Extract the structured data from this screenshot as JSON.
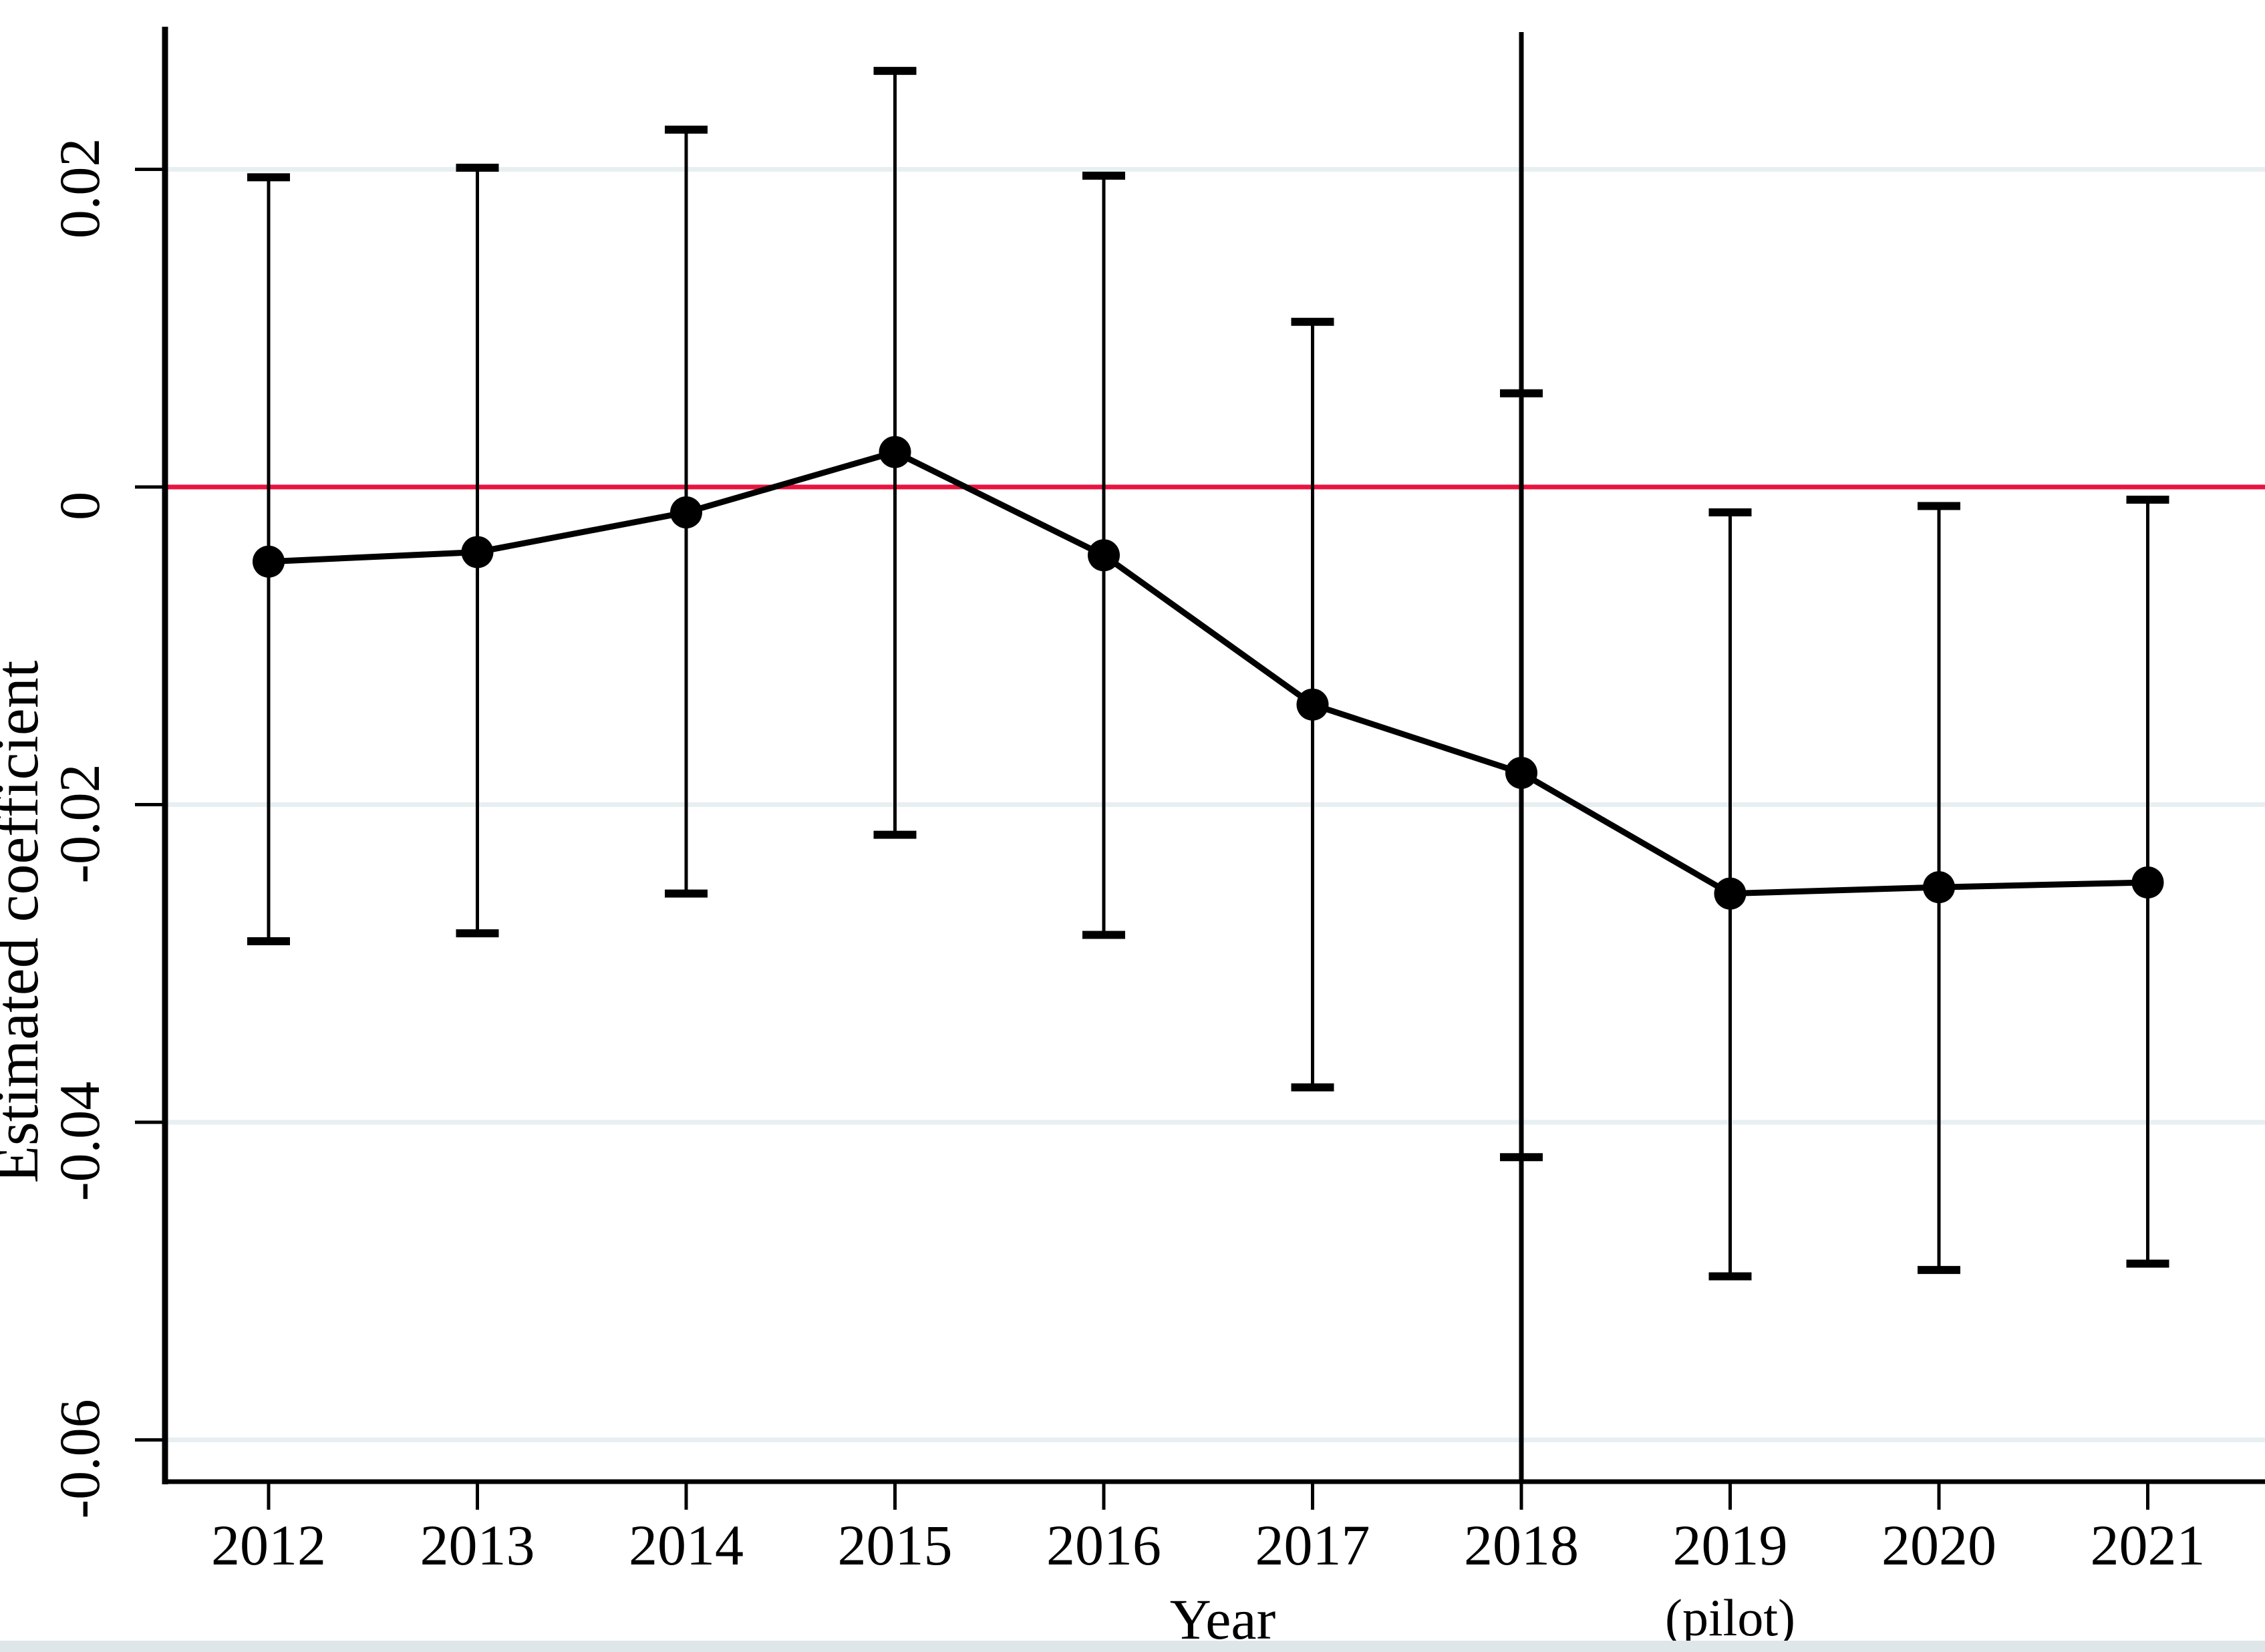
{
  "figure": {
    "background": "#ffffff",
    "bottom_strip_color": "#dfe6ea"
  },
  "chart_data": {
    "type": "line",
    "subtype": "coefficient-plot-with-confidence-intervals",
    "title": "",
    "xlabel": "Year",
    "ylabel": "Estimated coefficient",
    "categories": [
      "2012",
      "2013",
      "2014",
      "2015",
      "2016",
      "2017",
      "2018",
      "2019",
      "2020",
      "2021"
    ],
    "x_axis_note": {
      "text": "(pilot)",
      "under_category": "2019"
    },
    "series": [
      {
        "name": "Estimated coefficient",
        "values": [
          -0.0047,
          -0.0041,
          -0.0016,
          0.0022,
          -0.0043,
          -0.0137,
          -0.018,
          -0.0256,
          -0.0252,
          -0.0249
        ],
        "ci_high": [
          0.0195,
          0.0201,
          0.0225,
          0.0262,
          0.0196,
          0.0104,
          0.0059,
          -0.0016,
          -0.0012,
          -0.0008
        ],
        "ci_low": [
          -0.0286,
          -0.0281,
          -0.0256,
          -0.0219,
          -0.0282,
          -0.0378,
          -0.0422,
          -0.0497,
          -0.0493,
          -0.0489
        ]
      }
    ],
    "yticks": [
      0.02,
      0,
      -0.02,
      -0.04,
      -0.06
    ],
    "ytick_labels": [
      "0.02",
      "0",
      "-0.02",
      "-0.04",
      "-0.06"
    ],
    "ylim": [
      -0.0626,
      0.0287
    ],
    "grid": true,
    "legend": "none",
    "reference_lines": {
      "horizontal_zero_line": {
        "y": 0,
        "color": "#e8143f"
      },
      "vertical_line_at_category": "2018"
    },
    "colors": {
      "series_line": "#000000",
      "marker": "#000000",
      "error_bar": "#000000",
      "zero_line": "#e8143f",
      "gridline": "#e7eff2",
      "axis": "#000000",
      "text": "#000000"
    }
  }
}
